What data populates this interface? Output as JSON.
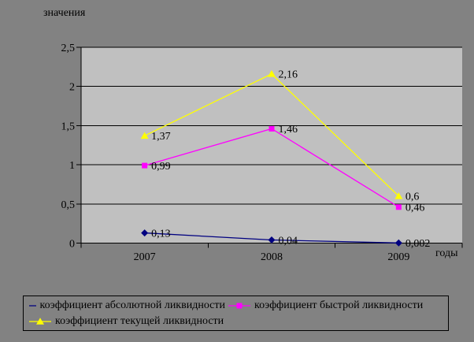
{
  "chart": {
    "y_axis_title": "значения",
    "x_axis_title": "годы",
    "colors": {
      "outer_background": "#828282",
      "plot_background": "#c0c0c0",
      "axis_and_grid": "#000000",
      "text": "#000000"
    }
  },
  "chart_data": {
    "type": "line",
    "title": "",
    "xlabel": "годы",
    "ylabel": "значения",
    "categories": [
      "2007",
      "2008",
      "2009"
    ],
    "series": [
      {
        "name": "коэффициент абсолютной ликвидности",
        "values": [
          0.13,
          0.04,
          0.002
        ],
        "point_labels": [
          "0,13",
          "0,04",
          "0,002"
        ],
        "color": "#000080",
        "marker": "diamond"
      },
      {
        "name": "коэффициент быстрой ликвидности",
        "values": [
          0.99,
          1.46,
          0.46
        ],
        "point_labels": [
          "0,99",
          "1,46",
          "0,46"
        ],
        "color": "#ff00ff",
        "marker": "square"
      },
      {
        "name": "коэффициент текущей ликвидности",
        "values": [
          1.37,
          2.16,
          0.6
        ],
        "point_labels": [
          "1,37",
          "2,16",
          "0,6"
        ],
        "color": "#ffff00",
        "marker": "triangle"
      }
    ],
    "ylim": [
      0,
      2.5
    ],
    "y_tick_values": [
      0,
      0.5,
      1,
      1.5,
      2,
      2.5
    ],
    "y_tick_labels": [
      "0",
      "0,5",
      "1",
      "1,5",
      "2",
      "2,5"
    ],
    "grid": true,
    "legend_position": "bottom"
  }
}
